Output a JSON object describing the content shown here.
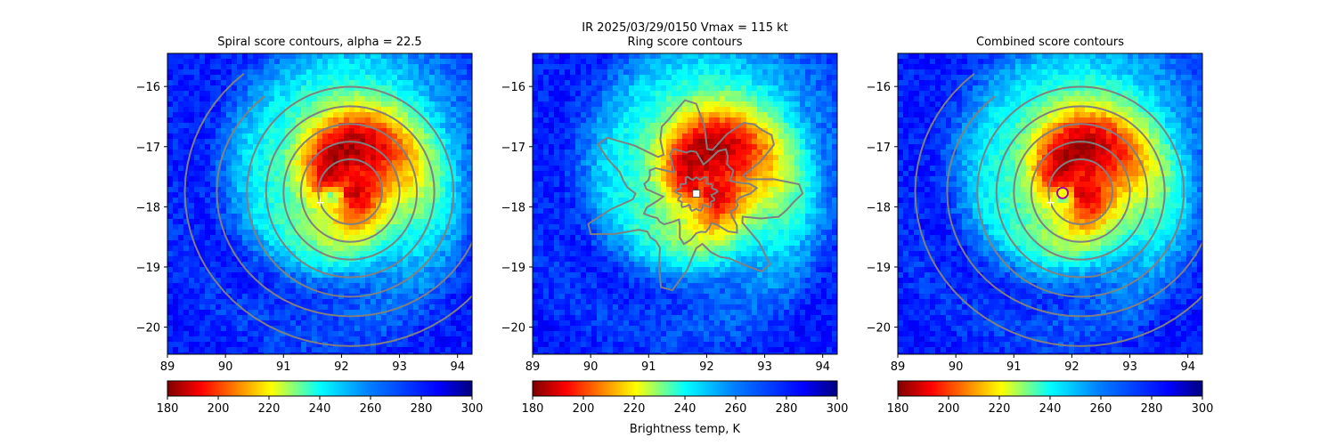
{
  "figure": {
    "suptitle_line1": "IR  2025/03/29/0150    Vmax = 115 kt",
    "colorbar_label": "Brightness temp, K"
  },
  "chart_data": [
    {
      "type": "heatmap",
      "title": "Spiral score contours, alpha = 22.5",
      "xlim": [
        89.0,
        94.25
      ],
      "ylim": [
        -20.45,
        -15.45
      ],
      "x_ticks": [
        "89",
        "90",
        "91",
        "92",
        "93",
        "94"
      ],
      "y_ticks": [
        "−16",
        "−17",
        "−18",
        "−19",
        "−20"
      ],
      "colormap": "jet_r",
      "clim": [
        180,
        300
      ],
      "colorbar_ticks": [
        "180",
        "200",
        "220",
        "240",
        "260",
        "280",
        "300"
      ],
      "storm_center": [
        92.0,
        -17.75
      ],
      "eye": [
        91.8,
        -17.75
      ],
      "markers": [
        {
          "symbol": "plus",
          "x": 91.63,
          "y": -17.93,
          "color": "#ffffff"
        }
      ],
      "contour_color": "#808080"
    },
    {
      "type": "heatmap",
      "title": "Ring score contours",
      "xlim": [
        89.0,
        94.25
      ],
      "ylim": [
        -20.45,
        -15.45
      ],
      "x_ticks": [
        "89",
        "90",
        "91",
        "92",
        "93",
        "94"
      ],
      "y_ticks": [
        "−16",
        "−17",
        "−18",
        "−19",
        "−20"
      ],
      "colormap": "jet_r",
      "clim": [
        180,
        300
      ],
      "colorbar_ticks": [
        "180",
        "200",
        "220",
        "240",
        "260",
        "280",
        "300"
      ],
      "storm_center": [
        91.9,
        -17.75
      ],
      "markers": [
        {
          "symbol": "square",
          "x": 91.82,
          "y": -17.78,
          "color": "#ffffff"
        }
      ],
      "contour_color": "#808080"
    },
    {
      "type": "heatmap",
      "title": "Combined score contours",
      "xlim": [
        89.0,
        94.25
      ],
      "ylim": [
        -20.45,
        -15.45
      ],
      "x_ticks": [
        "89",
        "90",
        "91",
        "92",
        "93",
        "94"
      ],
      "y_ticks": [
        "−16",
        "−17",
        "−18",
        "−19",
        "−20"
      ],
      "colormap": "jet_r",
      "clim": [
        180,
        300
      ],
      "colorbar_ticks": [
        "180",
        "200",
        "220",
        "240",
        "260",
        "280",
        "300"
      ],
      "storm_center": [
        92.0,
        -17.75
      ],
      "eye": [
        91.8,
        -17.75
      ],
      "markers": [
        {
          "symbol": "plus",
          "x": 91.63,
          "y": -17.93,
          "color": "#ffffff"
        },
        {
          "symbol": "circle",
          "x": 91.84,
          "y": -17.77,
          "color": "#ffff00",
          "edge": "#aa00aa"
        }
      ],
      "contour_color": "#808080"
    }
  ]
}
